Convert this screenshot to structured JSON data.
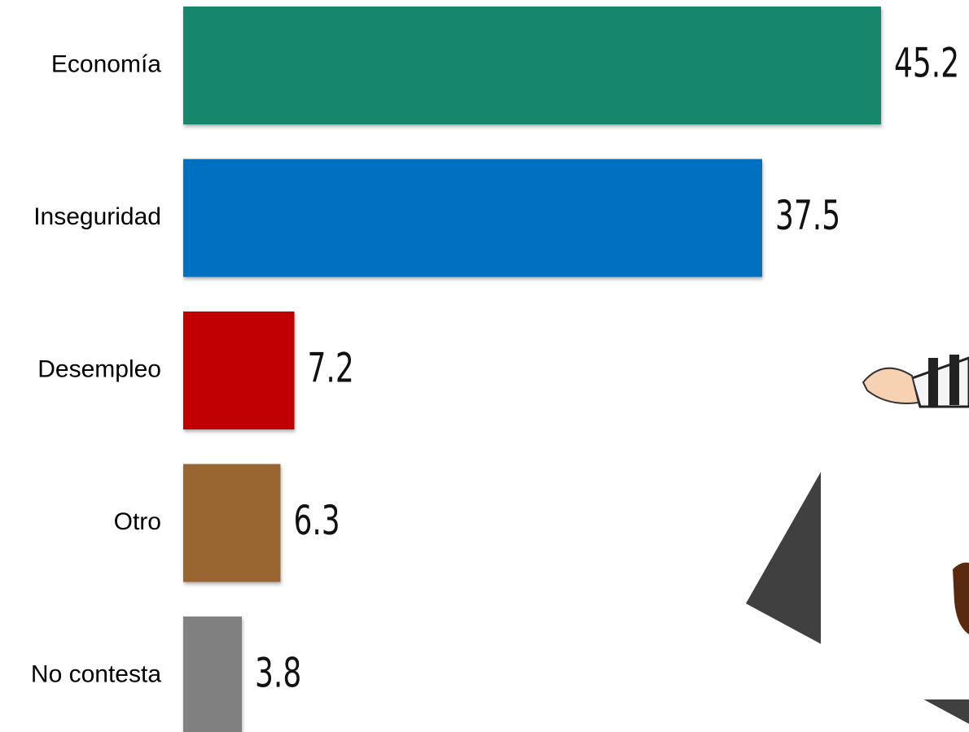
{
  "chart_data": {
    "type": "bar",
    "orientation": "horizontal",
    "categories": [
      "Economía",
      "Inseguridad",
      "Desempleo",
      "Otro",
      "No contesta"
    ],
    "values": [
      45.2,
      37.5,
      7.2,
      6.3,
      3.8
    ],
    "colors": [
      "#18876c",
      "#0070c0",
      "#c00000",
      "#996633",
      "#808080"
    ]
  }
}
